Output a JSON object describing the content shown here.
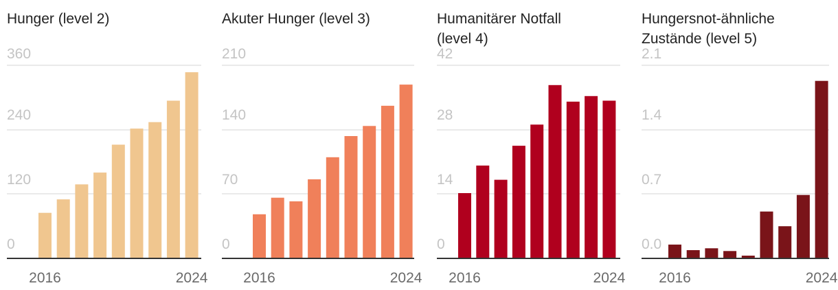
{
  "chart_data": [
    {
      "type": "bar",
      "title_lines": [
        "Hunger (level 2)"
      ],
      "color": "#f0c68f",
      "x": [
        2016,
        2017,
        2018,
        2019,
        2020,
        2021,
        2022,
        2023,
        2024
      ],
      "values": [
        85,
        110,
        138,
        160,
        212,
        242,
        254,
        294,
        347
      ],
      "ylim": [
        0,
        360
      ],
      "yticks": [
        "0",
        "120",
        "240",
        "360"
      ],
      "xtick_labels": [
        "2016",
        "2024"
      ]
    },
    {
      "type": "bar",
      "title_lines": [
        "Akuter Hunger (level 3)"
      ],
      "color": "#f0805a",
      "x": [
        2016,
        2017,
        2018,
        2019,
        2020,
        2021,
        2022,
        2023,
        2024
      ],
      "values": [
        48,
        66,
        62,
        86,
        110,
        133,
        144,
        166,
        189
      ],
      "ylim": [
        0,
        210
      ],
      "yticks": [
        "0",
        "70",
        "140",
        "210"
      ],
      "xtick_labels": [
        "2016",
        "2024"
      ]
    },
    {
      "type": "bar",
      "title_lines": [
        "Humanitärer Notfall",
        "(level 4)"
      ],
      "color": "#b0001e",
      "x": [
        2016,
        2017,
        2018,
        2019,
        2020,
        2021,
        2022,
        2023,
        2024
      ],
      "values": [
        14.2,
        20.2,
        17.1,
        24.5,
        29.1,
        37.7,
        34.1,
        35.3,
        34.3
      ],
      "ylim": [
        0,
        42
      ],
      "yticks": [
        "0",
        "14",
        "28",
        "42"
      ],
      "xtick_labels": [
        "2016",
        "2024"
      ]
    },
    {
      "type": "bar",
      "title_lines": [
        "Hungersnot-ähnliche",
        "Zustände (level 5)"
      ],
      "color": "#7a1419",
      "x": [
        2016,
        2017,
        2018,
        2019,
        2020,
        2021,
        2022,
        2023,
        2024
      ],
      "values": [
        0.15,
        0.09,
        0.11,
        0.08,
        0.03,
        0.51,
        0.35,
        0.69,
        1.93
      ],
      "ylim": [
        0,
        2.1
      ],
      "yticks": [
        "0.0",
        "0.7",
        "1.4",
        "2.1"
      ],
      "xtick_labels": [
        "2016",
        "2024"
      ]
    }
  ]
}
